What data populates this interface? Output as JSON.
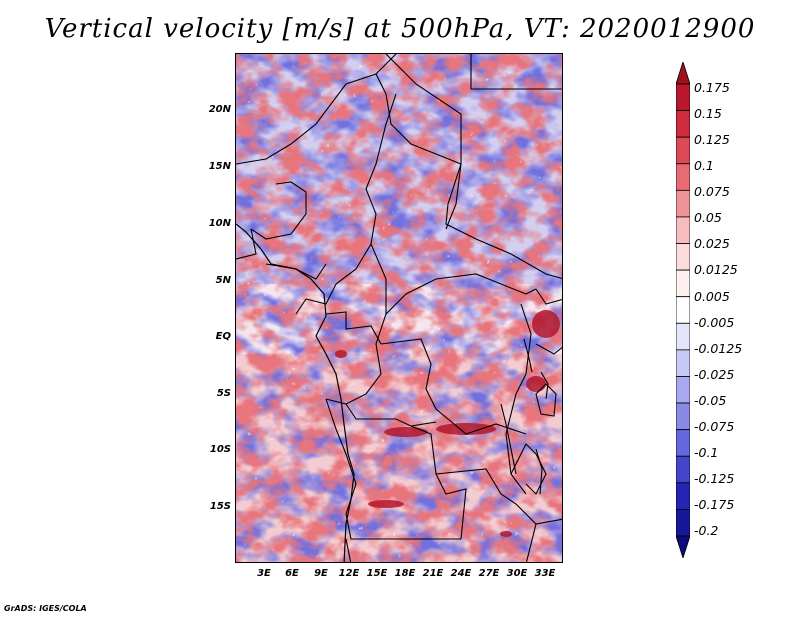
{
  "title": "Vertical velocity [m/s] at 500hPa, VT: 2020012900",
  "footer": "GrADS: IGES/COLA",
  "map": {
    "lat_labels": [
      "20N",
      "15N",
      "10N",
      "5N",
      "EQ",
      "5S",
      "10S",
      "15S"
    ],
    "lon_labels": [
      "3E",
      "6E",
      "9E",
      "12E",
      "15E",
      "18E",
      "21E",
      "24E",
      "27E",
      "30E",
      "33E"
    ],
    "variable": "Vertical velocity",
    "units": "m/s",
    "level": "500hPa",
    "valid_time": "2020012900"
  },
  "colorbar": {
    "labels": [
      "0.175",
      "0.15",
      "0.125",
      "0.1",
      "0.075",
      "0.05",
      "0.025",
      "0.0125",
      "0.005",
      "-0.005",
      "-0.0125",
      "-0.025",
      "-0.05",
      "-0.075",
      "-0.1",
      "-0.125",
      "-0.175",
      "-0.2"
    ],
    "colors": [
      "#a10e1e",
      "#b8182c",
      "#cd2c3c",
      "#db4a55",
      "#e66b73",
      "#ef9499",
      "#f6bcbe",
      "#fbdcdc",
      "#fff0f0",
      "#ffffff",
      "#e4e4fb",
      "#c8c8f6",
      "#a9a9ef",
      "#8a8ae6",
      "#6666dd",
      "#4545cc",
      "#2525b5",
      "#17179a",
      "#0b0b7c"
    ]
  }
}
